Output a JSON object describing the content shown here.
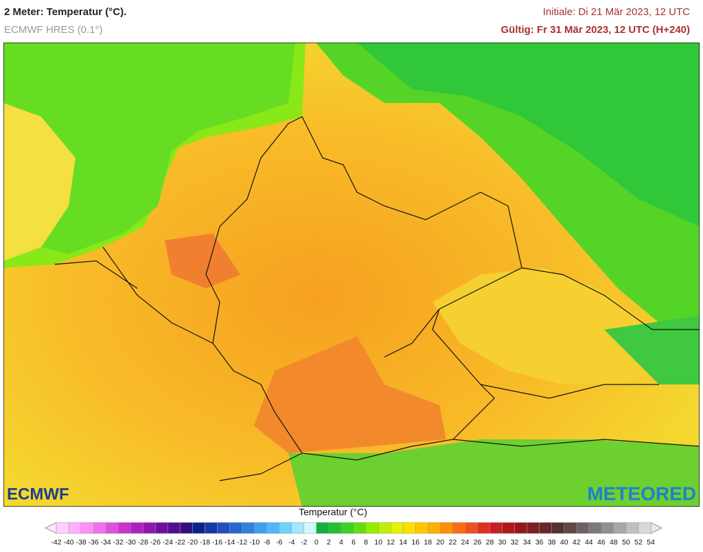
{
  "header": {
    "title": "2 Meter: Temperatur (°C).",
    "model": "ECMWF HRES (0.1°)",
    "init": "Initiale: Di 21 Mär 2023, 12 UTC",
    "valid": "Gültig: Fr 31 Mär 2023, 12 UTC (H+240)"
  },
  "logos": {
    "left": "ECMWF",
    "right": "METEORED"
  },
  "legend": {
    "title": "Temperatur (°C)",
    "ticks": [
      -42,
      -40,
      -38,
      -36,
      -34,
      -32,
      -30,
      -28,
      -26,
      -24,
      -22,
      -20,
      -18,
      -16,
      -14,
      -12,
      -10,
      -8,
      -6,
      -4,
      -2,
      0,
      2,
      4,
      6,
      8,
      10,
      12,
      14,
      16,
      18,
      20,
      22,
      24,
      26,
      28,
      30,
      32,
      34,
      36,
      38,
      40,
      42,
      44,
      46,
      48,
      50,
      52,
      54
    ],
    "colors": [
      "#ffd0ff",
      "#ffb0ff",
      "#ff90f8",
      "#f070f0",
      "#e050e0",
      "#d030d0",
      "#b020c0",
      "#9018b0",
      "#7010a0",
      "#501090",
      "#301080",
      "#102090",
      "#1838a8",
      "#2050c0",
      "#2868d0",
      "#3080e0",
      "#40a0f0",
      "#50b8f8",
      "#70d0ff",
      "#a0e8ff",
      "#d0f8ff",
      "#10b040",
      "#20c030",
      "#40d020",
      "#60e010",
      "#90f000",
      "#c0f000",
      "#e8f000",
      "#ffe000",
      "#ffc800",
      "#ffb000",
      "#ff9000",
      "#f87010",
      "#f05020",
      "#e03020",
      "#c82020",
      "#b01818",
      "#981818",
      "#802020",
      "#682828",
      "#583030",
      "#604848",
      "#706060",
      "#807878",
      "#909090",
      "#a8a8a8",
      "#c0c0c0",
      "#d8d8d8"
    ],
    "under_color": "#ffe8ff",
    "over_color": "#e8e8e8"
  }
}
